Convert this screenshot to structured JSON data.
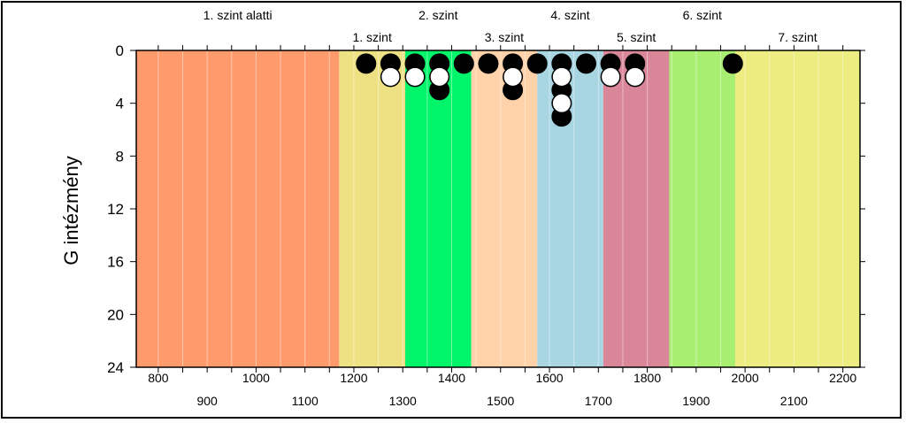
{
  "chart_data": {
    "type": "scatter",
    "ylabel": "G intézmény",
    "xlabel": "",
    "xlim": [
      755,
      2235
    ],
    "ylim": [
      0,
      24
    ],
    "y_reversed": true,
    "x_ticks_bottom_row1": [
      800,
      1000,
      1200,
      1400,
      1600,
      1800,
      2000,
      2200
    ],
    "x_ticks_bottom_row2": [
      900,
      1100,
      1300,
      1500,
      1700,
      1900,
      2100
    ],
    "x_minor_ticks": [
      800,
      850,
      900,
      950,
      1000,
      1050,
      1100,
      1150,
      1200,
      1250,
      1300,
      1350,
      1400,
      1450,
      1500,
      1550,
      1600,
      1650,
      1700,
      1750,
      1800,
      1850,
      1900,
      1950,
      2000,
      2050,
      2100,
      2150,
      2200
    ],
    "y_ticks": [
      0,
      4,
      8,
      12,
      16,
      20,
      24
    ],
    "grid": "vertical minor lines",
    "bands": [
      {
        "label": "1. szint alatti",
        "from": 755,
        "to": 1170,
        "color": "#FF9A6C",
        "label_row": "top"
      },
      {
        "label": "1. szint",
        "from": 1170,
        "to": 1305,
        "color": "#EDE184",
        "label_row": "bottom"
      },
      {
        "label": "2. szint",
        "from": 1305,
        "to": 1440,
        "color": "#00F56A",
        "label_row": "top"
      },
      {
        "label": "3. szint",
        "from": 1440,
        "to": 1575,
        "color": "#FFD2AA",
        "label_row": "bottom"
      },
      {
        "label": "4. szint",
        "from": 1575,
        "to": 1710,
        "color": "#A8D5E2",
        "label_row": "top"
      },
      {
        "label": "5. szint",
        "from": 1710,
        "to": 1845,
        "color": "#D98699",
        "label_row": "bottom"
      },
      {
        "label": "6. szint",
        "from": 1845,
        "to": 1980,
        "color": "#A8EE70",
        "label_row": "top"
      },
      {
        "label": "7. szint",
        "from": 1980,
        "to": 2235,
        "color": "#ECEC80",
        "label_row": "bottom"
      }
    ],
    "series": [
      {
        "marker": "filled",
        "color": "#000000",
        "points": [
          {
            "x": 1225,
            "y": 1
          },
          {
            "x": 1275,
            "y": 1
          },
          {
            "x": 1325,
            "y": 1
          },
          {
            "x": 1375,
            "y": 1
          },
          {
            "x": 1375,
            "y": 3
          },
          {
            "x": 1425,
            "y": 1
          },
          {
            "x": 1475,
            "y": 1
          },
          {
            "x": 1525,
            "y": 1
          },
          {
            "x": 1525,
            "y": 3
          },
          {
            "x": 1575,
            "y": 1
          },
          {
            "x": 1625,
            "y": 1
          },
          {
            "x": 1625,
            "y": 3
          },
          {
            "x": 1625,
            "y": 5
          },
          {
            "x": 1675,
            "y": 1
          },
          {
            "x": 1725,
            "y": 1
          },
          {
            "x": 1775,
            "y": 1
          },
          {
            "x": 1975,
            "y": 1
          }
        ]
      },
      {
        "marker": "open",
        "color": "#ffffff",
        "points": [
          {
            "x": 1275,
            "y": 2
          },
          {
            "x": 1325,
            "y": 2
          },
          {
            "x": 1375,
            "y": 2
          },
          {
            "x": 1525,
            "y": 2
          },
          {
            "x": 1625,
            "y": 2
          },
          {
            "x": 1625,
            "y": 4
          },
          {
            "x": 1725,
            "y": 2
          },
          {
            "x": 1775,
            "y": 2
          }
        ]
      }
    ]
  }
}
